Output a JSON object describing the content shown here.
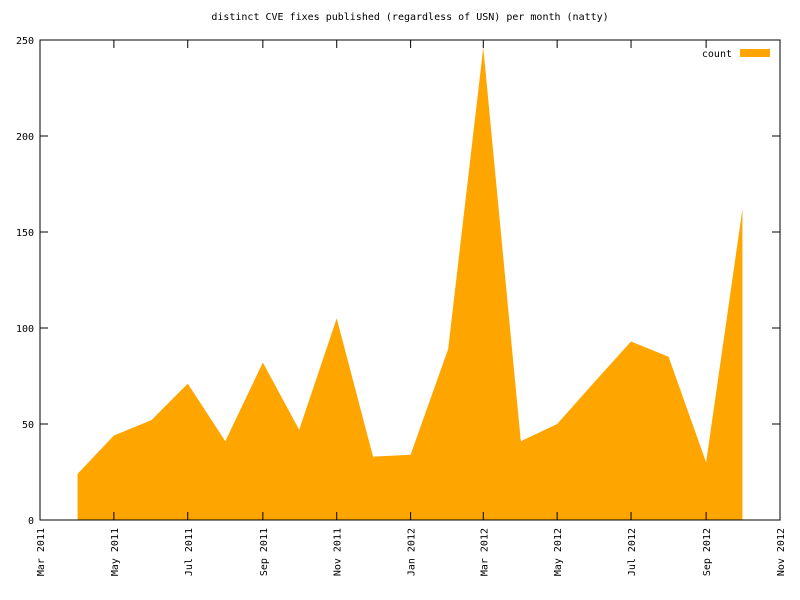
{
  "chart_data": {
    "type": "area",
    "title": "distinct CVE fixes published (regardless of USN) per month (natty)",
    "x": [
      "2011-04",
      "2011-05",
      "2011-06",
      "2011-07",
      "2011-08",
      "2011-09",
      "2011-10",
      "2011-11",
      "2011-12",
      "2012-01",
      "2012-02",
      "2012-03",
      "2012-04",
      "2012-05",
      "2012-06",
      "2012-07",
      "2012-08",
      "2012-09",
      "2012-10"
    ],
    "series": [
      {
        "name": "count",
        "color": "#ffa500",
        "values": [
          24,
          44,
          52,
          71,
          41,
          82,
          47,
          105,
          33,
          34,
          89,
          246,
          41,
          50,
          72,
          93,
          85,
          30,
          162
        ]
      }
    ],
    "xlim": [
      "2011-03",
      "2012-11"
    ],
    "xticks": [
      {
        "value": "2011-03",
        "label": "Mar 2011"
      },
      {
        "value": "2011-05",
        "label": "May 2011"
      },
      {
        "value": "2011-07",
        "label": "Jul 2011"
      },
      {
        "value": "2011-09",
        "label": "Sep 2011"
      },
      {
        "value": "2011-11",
        "label": "Nov 2011"
      },
      {
        "value": "2012-01",
        "label": "Jan 2012"
      },
      {
        "value": "2012-03",
        "label": "Mar 2012"
      },
      {
        "value": "2012-05",
        "label": "May 2012"
      },
      {
        "value": "2012-07",
        "label": "Jul 2012"
      },
      {
        "value": "2012-09",
        "label": "Sep 2012"
      },
      {
        "value": "2012-11",
        "label": "Nov 2012"
      }
    ],
    "ylim": [
      0,
      250
    ],
    "yticks": [
      0,
      50,
      100,
      150,
      200,
      250
    ],
    "legend": "top-right"
  }
}
